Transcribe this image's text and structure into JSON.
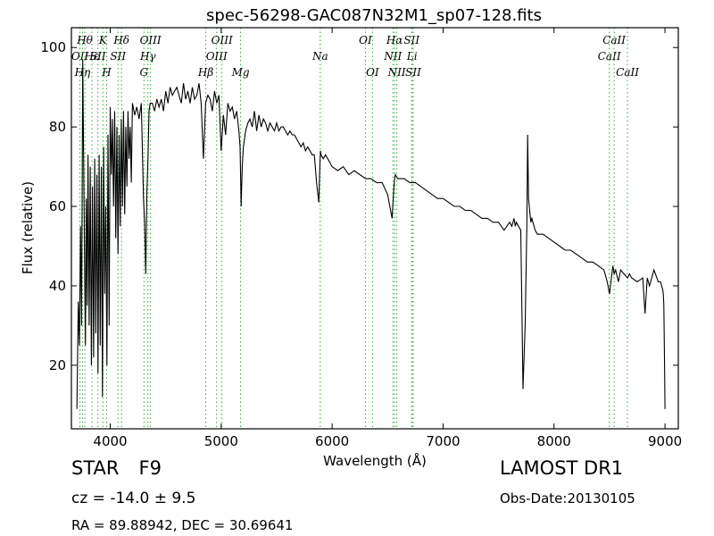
{
  "chart_data": {
    "type": "line",
    "title": "spec-56298-GAC087N32M1_sp07-128.fits",
    "xlabel": "Wavelength (Å)",
    "ylabel": "Flux (relative)",
    "xlim": [
      3650,
      9120
    ],
    "ylim": [
      4,
      105
    ],
    "xticks": [
      4000,
      5000,
      6000,
      7000,
      8000,
      9000
    ],
    "yticks": [
      20,
      40,
      60,
      80,
      100
    ],
    "grid": false,
    "line_color": "#000000",
    "marker_color": "#33aa33",
    "series": [
      {
        "x": [
          3700,
          3712,
          3722,
          3732,
          3742,
          3752,
          3760,
          3768,
          3776,
          3784,
          3792,
          3800,
          3810,
          3820,
          3830,
          3840,
          3850,
          3860,
          3870,
          3880,
          3890,
          3900,
          3910,
          3920,
          3930,
          3940,
          3950,
          3960,
          3970,
          3980,
          3990,
          4000,
          4010,
          4020,
          4030,
          4040,
          4050,
          4060,
          4070,
          4080,
          4090,
          4100,
          4110,
          4120,
          4130,
          4140,
          4150,
          4160,
          4170,
          4180,
          4190,
          4200,
          4220,
          4240,
          4260,
          4280,
          4300,
          4310,
          4320,
          4330,
          4340,
          4350,
          4360,
          4380,
          4400,
          4420,
          4440,
          4460,
          4480,
          4500,
          4520,
          4540,
          4560,
          4580,
          4600,
          4620,
          4640,
          4660,
          4680,
          4700,
          4720,
          4740,
          4760,
          4780,
          4800,
          4820,
          4840,
          4860,
          4880,
          4900,
          4920,
          4940,
          4960,
          4980,
          5000,
          5020,
          5040,
          5060,
          5080,
          5100,
          5120,
          5140,
          5160,
          5170,
          5180,
          5190,
          5200,
          5220,
          5240,
          5260,
          5280,
          5300,
          5320,
          5340,
          5360,
          5380,
          5400,
          5420,
          5440,
          5460,
          5480,
          5500,
          5520,
          5540,
          5560,
          5580,
          5600,
          5620,
          5640,
          5660,
          5680,
          5700,
          5720,
          5740,
          5760,
          5780,
          5800,
          5820,
          5840,
          5860,
          5880,
          5890,
          5895,
          5900,
          5920,
          5940,
          5960,
          5980,
          6000,
          6050,
          6100,
          6150,
          6200,
          6250,
          6300,
          6350,
          6400,
          6450,
          6500,
          6540,
          6555,
          6563,
          6570,
          6590,
          6620,
          6650,
          6700,
          6750,
          6800,
          6850,
          6900,
          6950,
          7000,
          7050,
          7100,
          7150,
          7200,
          7250,
          7300,
          7350,
          7400,
          7450,
          7500,
          7550,
          7600,
          7620,
          7640,
          7650,
          7660,
          7680,
          7700,
          7720,
          7740,
          7755,
          7762,
          7770,
          7790,
          7800,
          7810,
          7830,
          7850,
          7900,
          7950,
          8000,
          8050,
          8100,
          8150,
          8200,
          8250,
          8300,
          8350,
          8400,
          8450,
          8480,
          8500,
          8530,
          8542,
          8555,
          8580,
          8600,
          8630,
          8662,
          8680,
          8700,
          8750,
          8800,
          8820,
          8840,
          8860,
          8880,
          8900,
          8940,
          8960,
          8980,
          8985,
          8990,
          8995,
          9000
        ],
        "values": [
          9,
          36,
          25,
          55,
          30,
          97,
          72,
          48,
          25,
          62,
          35,
          73,
          30,
          70,
          20,
          65,
          22,
          72,
          28,
          68,
          18,
          73,
          25,
          70,
          12,
          75,
          38,
          60,
          20,
          78,
          30,
          85,
          68,
          82,
          60,
          84,
          52,
          80,
          48,
          78,
          55,
          82,
          60,
          84,
          58,
          80,
          65,
          84,
          72,
          80,
          66,
          86,
          83,
          85,
          82,
          86,
          62,
          56,
          43,
          63,
          72,
          84,
          86,
          86,
          84,
          87,
          85,
          87,
          84,
          89,
          86,
          90,
          88,
          89,
          90,
          88,
          86,
          91,
          87,
          89,
          86,
          90,
          87,
          88,
          91,
          86,
          72,
          86,
          88,
          87,
          84,
          89,
          86,
          88,
          74,
          83,
          78,
          86,
          84,
          85,
          82,
          84,
          79,
          75,
          60,
          70,
          75,
          79,
          81,
          82,
          80,
          84,
          79,
          83,
          80,
          82,
          81,
          79,
          81,
          80,
          79,
          81,
          79,
          80,
          80,
          79,
          78,
          79,
          78,
          78,
          77,
          76,
          75,
          76,
          74,
          75,
          74,
          73,
          73,
          66,
          61,
          71,
          74,
          73,
          72,
          73,
          72,
          71,
          70,
          69,
          70,
          68,
          69,
          68,
          67,
          67,
          66,
          66,
          63,
          57,
          64,
          67,
          68,
          67,
          67,
          67,
          66,
          66,
          65,
          64,
          63,
          62,
          62,
          61,
          60,
          60,
          59,
          59,
          58,
          57,
          57,
          56,
          56,
          54,
          56,
          55,
          57,
          55,
          56,
          55,
          54,
          14,
          30,
          55,
          78,
          62,
          56,
          57,
          56,
          54,
          53,
          53,
          52,
          51,
          50,
          49,
          49,
          48,
          47,
          46,
          46,
          45,
          44,
          41,
          38,
          45,
          43,
          44,
          41,
          44,
          43,
          42,
          43,
          42,
          41,
          42,
          33,
          42,
          40,
          42,
          44,
          41,
          41,
          39,
          38,
          35,
          22,
          9
        ]
      }
    ],
    "line_markers": [
      {
        "wl": 3727,
        "label": "OII",
        "row": 2
      },
      {
        "wl": 3750,
        "label": "Hη",
        "row": 3
      },
      {
        "wl": 3771,
        "label": "Hθ",
        "row": 1
      },
      {
        "wl": 3835,
        "label": "Hε",
        "row": 2
      },
      {
        "wl": 3889,
        "label": "SII",
        "row": 2
      },
      {
        "wl": 3934,
        "label": "K",
        "row": 1
      },
      {
        "wl": 3968,
        "label": "H",
        "row": 3
      },
      {
        "wl": 4070,
        "label": "SII",
        "row": 2
      },
      {
        "wl": 4102,
        "label": "Hδ",
        "row": 1
      },
      {
        "wl": 4304,
        "label": "G",
        "row": 3
      },
      {
        "wl": 4340,
        "label": "Hγ",
        "row": 2
      },
      {
        "wl": 4363,
        "label": "OIII",
        "row": 1
      },
      {
        "wl": 4861,
        "label": "Hβ",
        "row": 3
      },
      {
        "wl": 4959,
        "label": "OIII",
        "row": 2
      },
      {
        "wl": 5007,
        "label": "OIII",
        "row": 1
      },
      {
        "wl": 5175,
        "label": "Mg",
        "row": 3
      },
      {
        "wl": 5893,
        "label": "Na",
        "row": 2
      },
      {
        "wl": 6300,
        "label": "OI",
        "row": 1
      },
      {
        "wl": 6364,
        "label": "OI",
        "row": 3
      },
      {
        "wl": 6548,
        "label": "NII",
        "row": 2
      },
      {
        "wl": 6563,
        "label": "Hα",
        "row": 1
      },
      {
        "wl": 6583,
        "label": "NII",
        "row": 3
      },
      {
        "wl": 6717,
        "label": "SII",
        "row": 1
      },
      {
        "wl": 6720,
        "label": "Li",
        "row": 2
      },
      {
        "wl": 6731,
        "label": "SII",
        "row": 3
      },
      {
        "wl": 8498,
        "label": "CaII",
        "row": 2
      },
      {
        "wl": 8542,
        "label": "CaII",
        "row": 1
      },
      {
        "wl": 8662,
        "label": "CaII",
        "row": 3
      }
    ]
  },
  "info": {
    "object_class": "STAR",
    "subclass": "F9",
    "cz": "cz = -14.0 ± 9.5",
    "radec": "RA = 89.88942, DEC = 30.69641",
    "survey": "LAMOST DR1",
    "obs_date": "Obs-Date:20130105"
  }
}
